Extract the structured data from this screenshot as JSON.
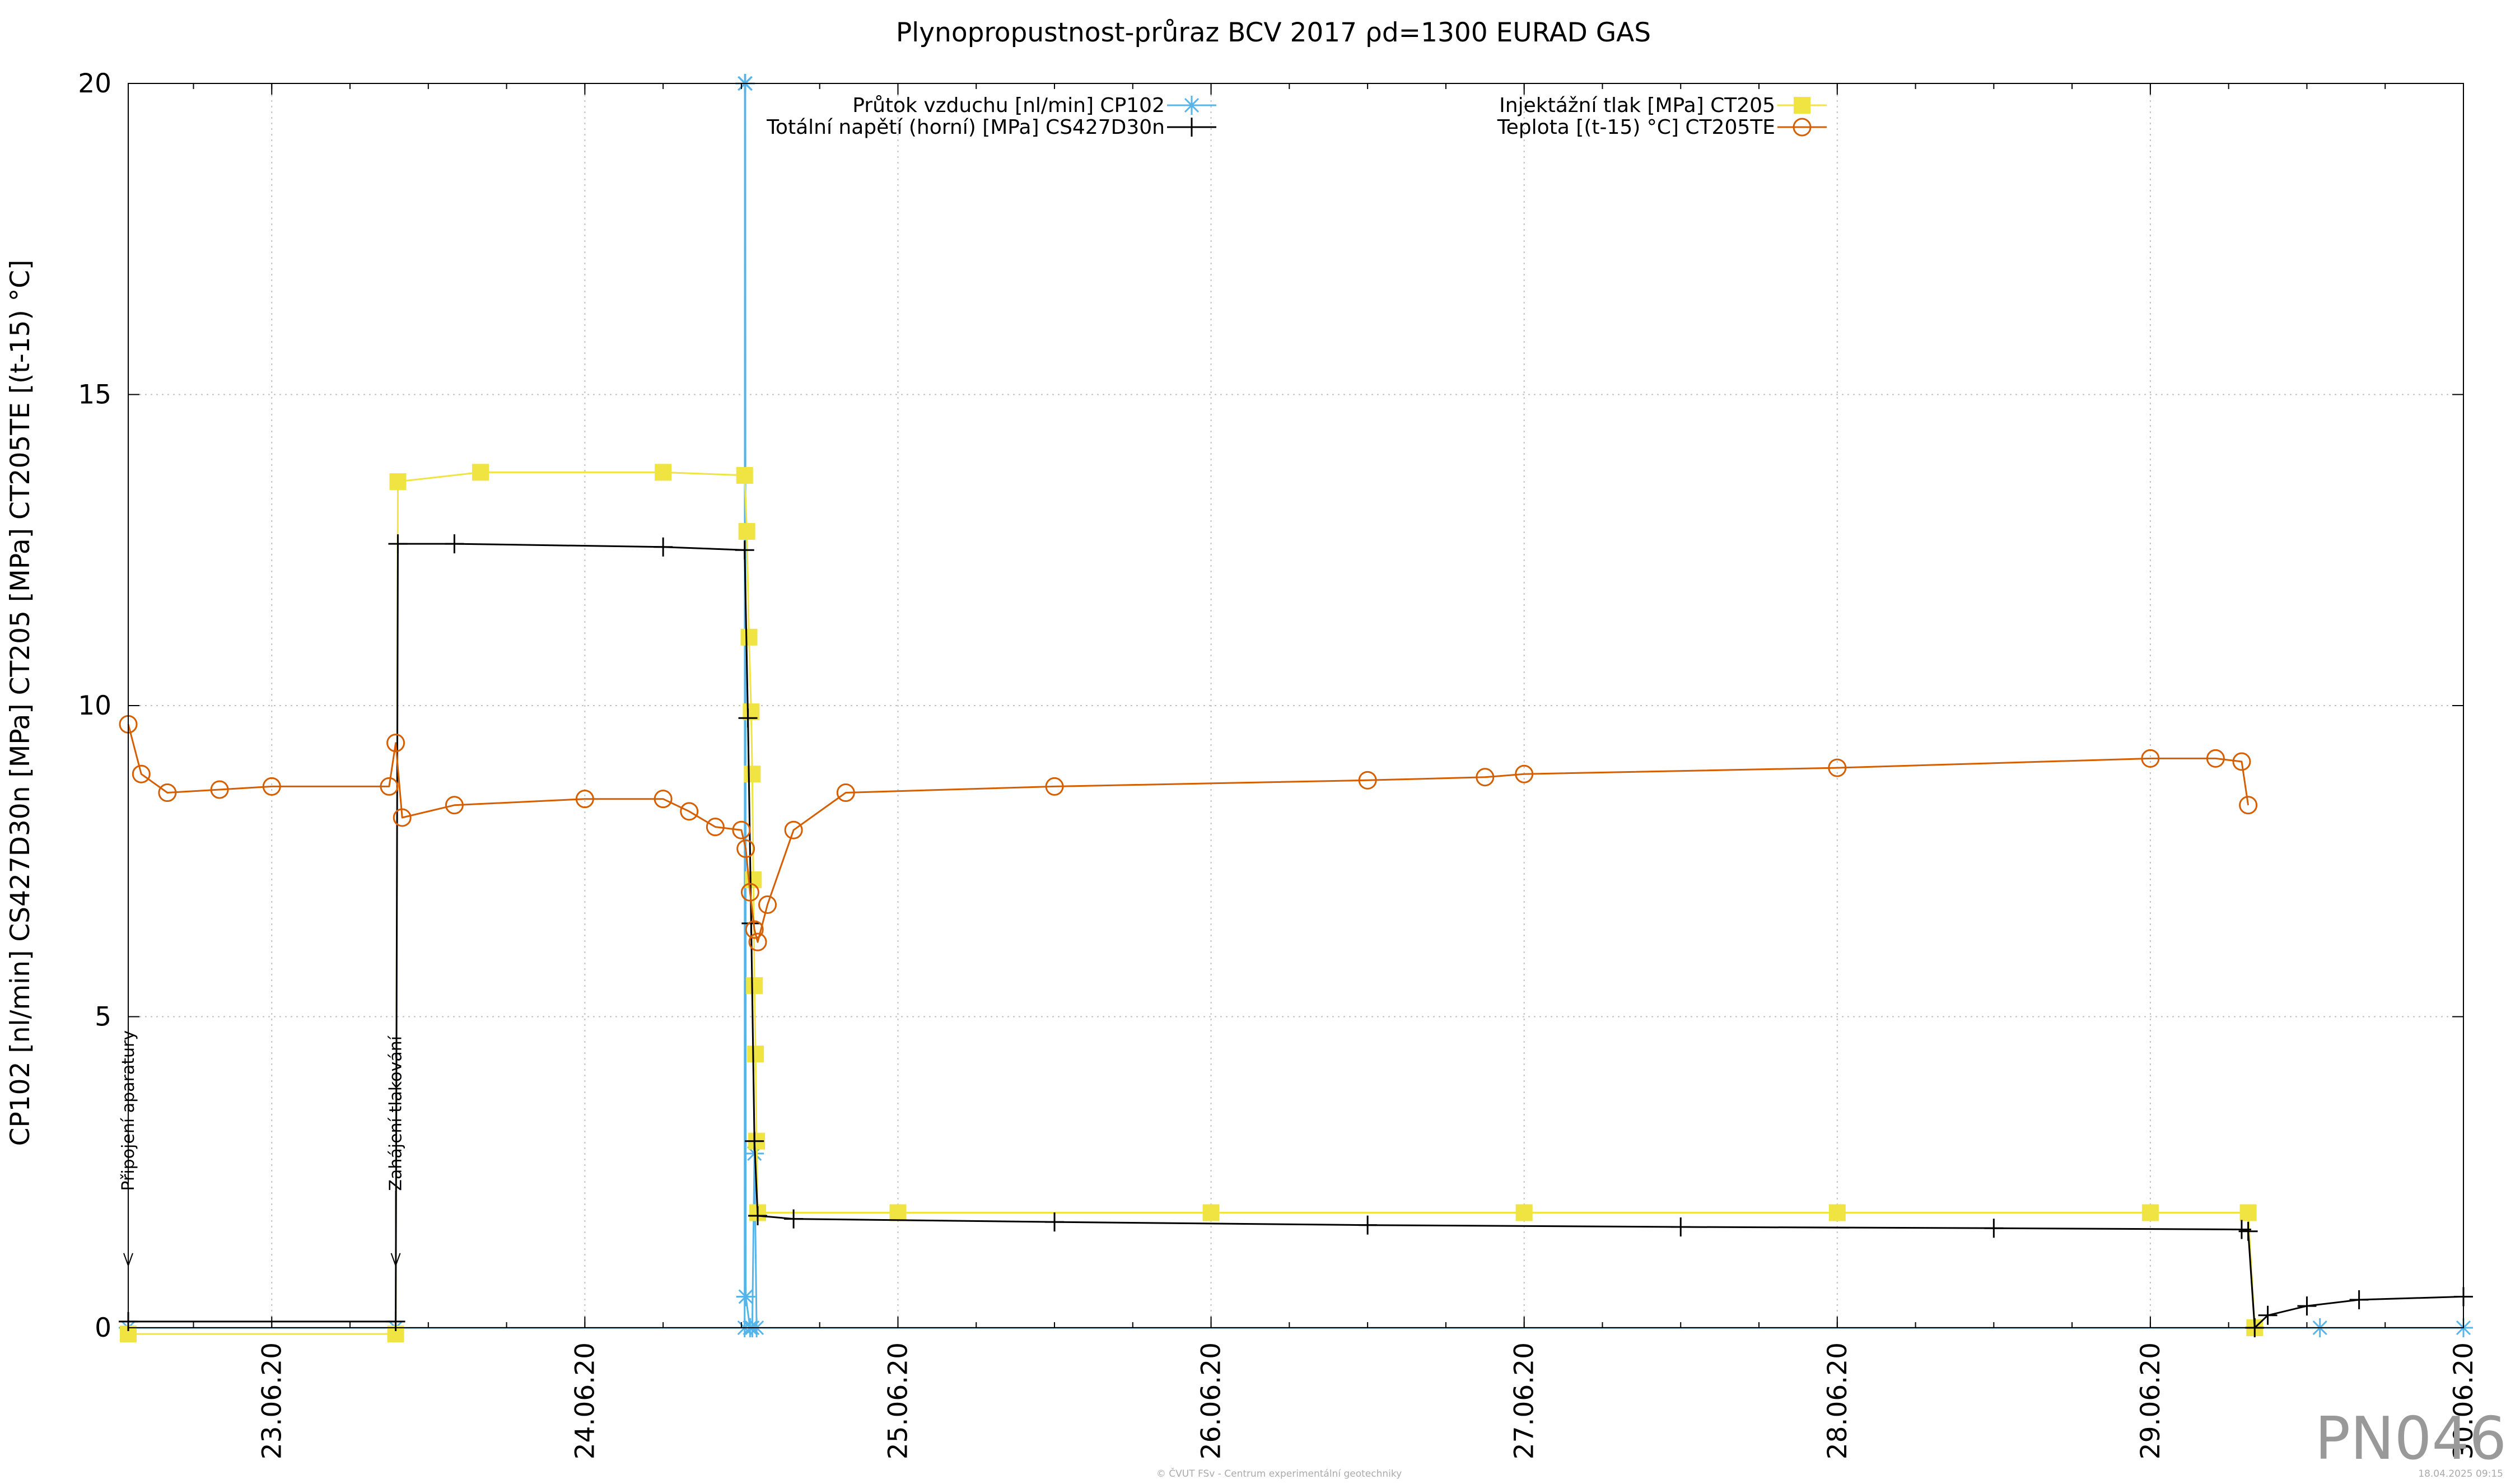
{
  "colors": {
    "flow": "#56b4e9",
    "stress": "#000000",
    "pressure": "#f0e442",
    "temperature": "#d55e00",
    "watermark": "#999999",
    "grid": "#c0c0c0"
  },
  "watermark": "PN046",
  "footer": {
    "credit": "© ČVUT FSv - Centrum experimentální geotechniky",
    "timestamp": "18.04.2025 09:15"
  },
  "chart_data": {
    "type": "line",
    "title": "Plynopropustnost-průraz BCV 2017 ρd=1300 EURAD GAS",
    "ylabel": "CP102 [nl/min] CS427D30n [MPa] CT205 [MPa] CT205TE [(t-15) °C]",
    "xlabel": "",
    "xlim": [
      "2020-06-22 13:00",
      "2020-06-30 00:00"
    ],
    "ylim": [
      0,
      20
    ],
    "x_ticks": [
      "23.06.20",
      "24.06.20",
      "25.06.20",
      "26.06.20",
      "27.06.20",
      "28.06.20",
      "29.06.20",
      "30.06.20"
    ],
    "y_ticks": [
      "0",
      "5",
      "10",
      "15",
      "20"
    ],
    "grid": true,
    "legend_position": "top",
    "annotations": [
      {
        "text": "Připojení aparatury",
        "x": "2020-06-22 13:00",
        "y": 1.0
      },
      {
        "text": "Zahájení tlakování",
        "x": "2020-06-23 09:30",
        "y": 1.0
      }
    ],
    "series": [
      {
        "name": "Průtok vzduchu [nl/min] CP102",
        "marker": "asterisk",
        "points": [
          [
            "2020-06-22 13:00",
            0.0
          ],
          [
            "2020-06-23 09:30",
            0.0
          ],
          [
            "2020-06-24 12:15",
            0.0
          ],
          [
            "2020-06-24 12:16",
            20.0
          ],
          [
            "2020-06-24 12:18",
            20.0
          ],
          [
            "2020-06-24 12:20",
            0.5
          ],
          [
            "2020-06-24 12:40",
            0.0
          ],
          [
            "2020-06-24 12:50",
            0.0
          ],
          [
            "2020-06-24 13:00",
            2.8
          ],
          [
            "2020-06-24 13:10",
            0.0
          ],
          [
            "2020-06-29 13:00",
            0.0
          ],
          [
            "2020-06-30 00:00",
            0.0
          ]
        ]
      },
      {
        "name": "Totální napětí (horní) [MPa] CS427D30n",
        "marker": "plus",
        "points": [
          [
            "2020-06-22 13:00",
            0.1
          ],
          [
            "2020-06-23 09:30",
            0.1
          ],
          [
            "2020-06-23 09:40",
            12.6
          ],
          [
            "2020-06-23 14:00",
            12.6
          ],
          [
            "2020-06-24 06:00",
            12.55
          ],
          [
            "2020-06-24 12:15",
            12.5
          ],
          [
            "2020-06-24 12:30",
            9.8
          ],
          [
            "2020-06-24 12:45",
            6.5
          ],
          [
            "2020-06-24 13:00",
            3.0
          ],
          [
            "2020-06-24 13:15",
            1.8
          ],
          [
            "2020-06-24 16:00",
            1.75
          ],
          [
            "2020-06-25 12:00",
            1.7
          ],
          [
            "2020-06-26 12:00",
            1.65
          ],
          [
            "2020-06-27 12:00",
            1.62
          ],
          [
            "2020-06-28 12:00",
            1.6
          ],
          [
            "2020-06-29 07:00",
            1.58
          ],
          [
            "2020-06-29 07:30",
            1.55
          ],
          [
            "2020-06-29 08:00",
            0.0
          ],
          [
            "2020-06-29 09:00",
            0.2
          ],
          [
            "2020-06-29 12:00",
            0.35
          ],
          [
            "2020-06-29 16:00",
            0.45
          ],
          [
            "2020-06-30 00:00",
            0.5
          ]
        ]
      },
      {
        "name": "Injektážní tlak [MPa] CT205",
        "marker": "square",
        "points": [
          [
            "2020-06-22 13:00",
            -0.1
          ],
          [
            "2020-06-23 09:30",
            -0.1
          ],
          [
            "2020-06-23 09:40",
            13.6
          ],
          [
            "2020-06-23 16:00",
            13.75
          ],
          [
            "2020-06-24 06:00",
            13.75
          ],
          [
            "2020-06-24 12:15",
            13.7
          ],
          [
            "2020-06-24 12:25",
            12.8
          ],
          [
            "2020-06-24 12:35",
            11.1
          ],
          [
            "2020-06-24 12:45",
            9.9
          ],
          [
            "2020-06-24 12:50",
            8.9
          ],
          [
            "2020-06-24 12:55",
            7.2
          ],
          [
            "2020-06-24 13:00",
            5.5
          ],
          [
            "2020-06-24 13:05",
            4.4
          ],
          [
            "2020-06-24 13:10",
            3.0
          ],
          [
            "2020-06-24 13:15",
            1.85
          ],
          [
            "2020-06-25 00:00",
            1.85
          ],
          [
            "2020-06-26 00:00",
            1.85
          ],
          [
            "2020-06-27 00:00",
            1.85
          ],
          [
            "2020-06-28 00:00",
            1.85
          ],
          [
            "2020-06-29 00:00",
            1.85
          ],
          [
            "2020-06-29 07:30",
            1.85
          ],
          [
            "2020-06-29 08:00",
            0.0
          ]
        ]
      },
      {
        "name": "Teplota [(t-15) °C] CT205TE",
        "marker": "circle",
        "points": [
          [
            "2020-06-22 13:00",
            9.7
          ],
          [
            "2020-06-22 14:00",
            8.9
          ],
          [
            "2020-06-22 16:00",
            8.6
          ],
          [
            "2020-06-22 20:00",
            8.65
          ],
          [
            "2020-06-23 00:00",
            8.7
          ],
          [
            "2020-06-23 09:00",
            8.7
          ],
          [
            "2020-06-23 09:30",
            9.4
          ],
          [
            "2020-06-23 10:00",
            8.2
          ],
          [
            "2020-06-23 14:00",
            8.4
          ],
          [
            "2020-06-24 00:00",
            8.5
          ],
          [
            "2020-06-24 06:00",
            8.5
          ],
          [
            "2020-06-24 08:00",
            8.3
          ],
          [
            "2020-06-24 10:00",
            8.05
          ],
          [
            "2020-06-24 12:00",
            8.0
          ],
          [
            "2020-06-24 12:20",
            7.7
          ],
          [
            "2020-06-24 12:40",
            7.0
          ],
          [
            "2020-06-24 13:00",
            6.4
          ],
          [
            "2020-06-24 13:15",
            6.2
          ],
          [
            "2020-06-24 14:00",
            6.8
          ],
          [
            "2020-06-24 16:00",
            8.0
          ],
          [
            "2020-06-24 20:00",
            8.6
          ],
          [
            "2020-06-25 12:00",
            8.7
          ],
          [
            "2020-06-26 12:00",
            8.8
          ],
          [
            "2020-06-26 21:00",
            8.85
          ],
          [
            "2020-06-27 00:00",
            8.9
          ],
          [
            "2020-06-28 00:00",
            9.0
          ],
          [
            "2020-06-29 00:00",
            9.15
          ],
          [
            "2020-06-29 05:00",
            9.15
          ],
          [
            "2020-06-29 07:00",
            9.1
          ],
          [
            "2020-06-29 07:30",
            8.4
          ]
        ]
      }
    ]
  }
}
